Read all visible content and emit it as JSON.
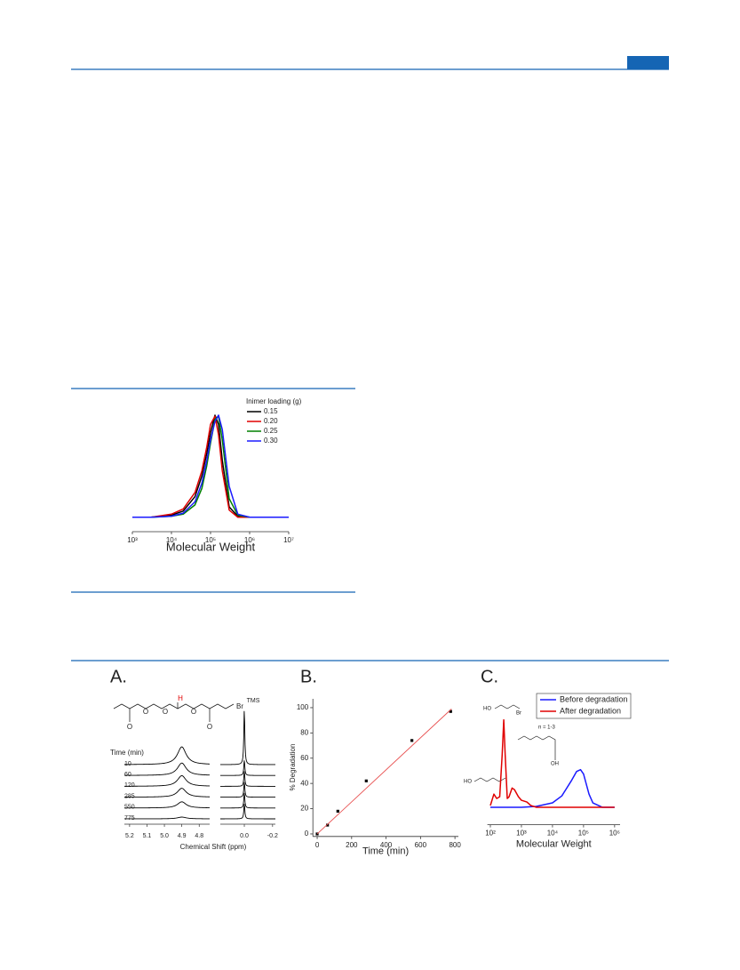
{
  "chart_data": [
    {
      "type": "line",
      "x_scale": "log",
      "legend_title": "Inimer loading (g)",
      "legend": "upper right",
      "xlabel": "Molecular Weight",
      "xlim": [
        1000,
        10000000
      ],
      "ylim": [
        -0.14,
        1.05
      ],
      "xticks": [
        {
          "value": 1000,
          "label": "10³"
        },
        {
          "value": 10000,
          "label": "10⁴"
        },
        {
          "value": 100000,
          "label": "10⁵"
        },
        {
          "value": 1000000,
          "label": "10⁶"
        },
        {
          "value": 10000000,
          "label": "10⁷"
        }
      ],
      "x": [
        1000,
        3000,
        10000,
        20000,
        40000,
        60000,
        80000,
        100000,
        130000,
        160000,
        200000,
        300000,
        500000,
        1000000,
        10000000
      ],
      "series": [
        {
          "name": "0.15",
          "color": "#000000",
          "values": [
            0,
            0,
            0.02,
            0.06,
            0.2,
            0.4,
            0.62,
            0.82,
            0.99,
            0.9,
            0.55,
            0.1,
            0.01,
            0,
            0
          ]
        },
        {
          "name": "0.20",
          "color": "#e00000",
          "values": [
            0,
            0,
            0.03,
            0.08,
            0.24,
            0.45,
            0.68,
            0.9,
            0.98,
            0.8,
            0.45,
            0.07,
            0,
            0,
            0
          ]
        },
        {
          "name": "0.25",
          "color": "#008000",
          "values": [
            0,
            0,
            0.01,
            0.03,
            0.12,
            0.28,
            0.5,
            0.72,
            0.95,
            0.98,
            0.75,
            0.18,
            0.02,
            0,
            0
          ]
        },
        {
          "name": "0.30",
          "color": "#1a1aff",
          "values": [
            0,
            0,
            0.01,
            0.04,
            0.15,
            0.33,
            0.55,
            0.75,
            0.93,
            0.99,
            0.85,
            0.3,
            0.03,
            0,
            0
          ]
        }
      ]
    },
    {
      "type": "nmr",
      "panel_label": "A.",
      "annotation": "TMS",
      "series_title": "Time (min)",
      "xlabel": "Chemical Shift (ppm)",
      "color": "#000000",
      "xlim_segments": [
        [
          5.23,
          4.74
        ],
        [
          0.17,
          -0.22
        ]
      ],
      "xticks": [
        5.2,
        5.1,
        {
          "value": 5,
          "label": "5.0"
        },
        4.9,
        4.8,
        {
          "value": 0,
          "label": "0.0"
        },
        -0.2
      ],
      "x": [
        4.9,
        0
      ],
      "series": [
        {
          "name": "10",
          "values": [
            1,
            3.2
          ]
        },
        {
          "name": "60",
          "values": [
            0.7,
            0.9
          ]
        },
        {
          "name": "120",
          "values": [
            0.6,
            0.9
          ]
        },
        {
          "name": "285",
          "values": [
            0.5,
            0.9
          ]
        },
        {
          "name": "550",
          "values": [
            0.35,
            0.9
          ]
        },
        {
          "name": "775",
          "values": [
            0.1,
            0.9
          ]
        }
      ],
      "structure_labels": [
        "O",
        "O",
        "O",
        "O",
        "O",
        "H",
        "Br"
      ]
    },
    {
      "type": "scatter",
      "panel_label": "B.",
      "xlabel": "Time (min)",
      "ylabel": "% Degradation",
      "xlim": [
        -25,
        820
      ],
      "ylim": [
        -2,
        107
      ],
      "xticks": [
        0,
        200,
        400,
        600,
        800
      ],
      "yticks": [
        0,
        20,
        40,
        60,
        80,
        100
      ],
      "series": [
        {
          "mode": "markers",
          "color": "#000000",
          "x": [
            0,
            60,
            120,
            285,
            550,
            775
          ],
          "values": [
            0,
            7,
            18,
            42,
            74,
            97
          ]
        },
        {
          "mode": "line",
          "color": "#e85050",
          "x": [
            0,
            780
          ],
          "values": [
            0,
            99
          ]
        }
      ]
    },
    {
      "type": "line",
      "x_scale": "log",
      "panel_label": "C.",
      "legend": "upper right",
      "xlabel": "Molecular Weight",
      "xlim": [
        80,
        1500000
      ],
      "ylim": [
        -0.2,
        1.2
      ],
      "xticks": [
        {
          "value": 100,
          "label": "10²"
        },
        {
          "value": 1000,
          "label": "10³"
        },
        {
          "value": 10000,
          "label": "10⁴"
        },
        {
          "value": 100000,
          "label": "10⁵"
        },
        {
          "value": 1000000,
          "label": "10⁶"
        }
      ],
      "series": [
        {
          "name": "Before degradation",
          "color": "#1a1aff",
          "x": [
            100,
            1000,
            3000,
            10000,
            20000,
            40000,
            60000,
            80000,
            100000,
            150000,
            200000,
            400000,
            1000000
          ],
          "values": [
            0,
            0,
            0.01,
            0.05,
            0.13,
            0.3,
            0.41,
            0.43,
            0.38,
            0.15,
            0.05,
            0,
            0
          ]
        },
        {
          "name": "After degradation",
          "color": "#e00000",
          "x": [
            100,
            130,
            160,
            200,
            240,
            270,
            300,
            350,
            400,
            500,
            600,
            800,
            1000,
            1500,
            2000,
            3000,
            10000,
            100000,
            1000000
          ],
          "values": [
            0.02,
            0.15,
            0.1,
            0.12,
            0.6,
            1,
            0.6,
            0.1,
            0.12,
            0.22,
            0.2,
            0.12,
            0.08,
            0.06,
            0.02,
            0,
            0,
            0,
            0
          ]
        }
      ],
      "structure_labels": [
        "HO",
        "Br",
        "n = 1-3",
        "OH",
        "HO"
      ]
    }
  ]
}
